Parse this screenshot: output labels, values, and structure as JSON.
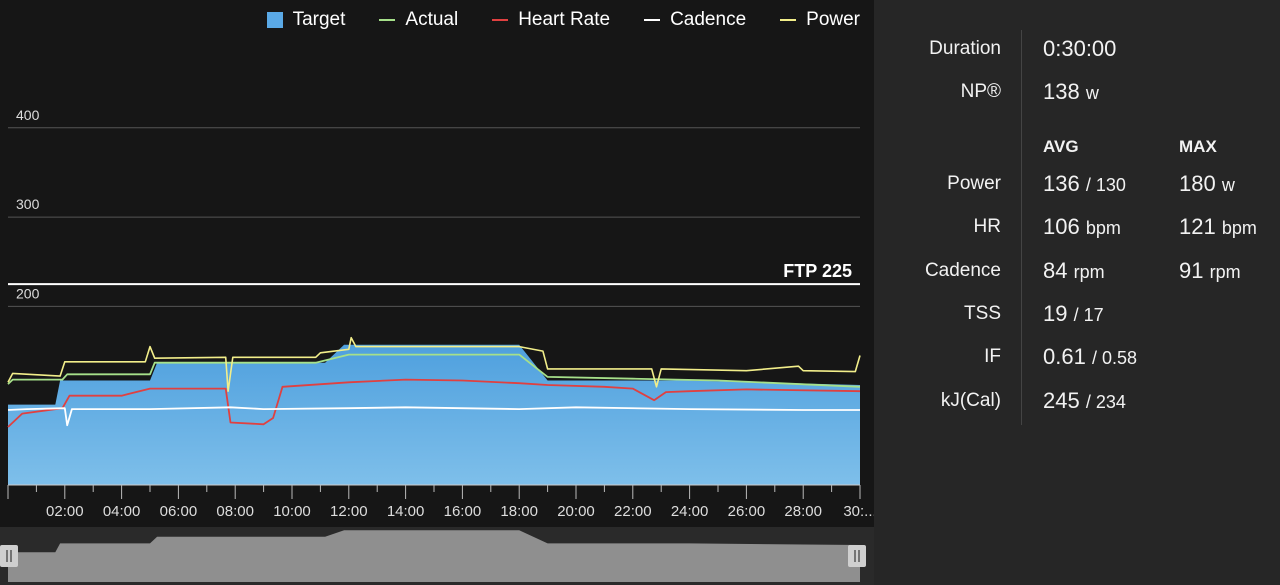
{
  "legend": {
    "items": [
      {
        "label": "Target",
        "color": "#5aa9e6",
        "kind": "box"
      },
      {
        "label": "Actual",
        "color": "#a6e08a",
        "kind": "line"
      },
      {
        "label": "Heart Rate",
        "color": "#e04040",
        "kind": "line"
      },
      {
        "label": "Cadence",
        "color": "#ffffff",
        "kind": "line"
      },
      {
        "label": "Power",
        "color": "#f2ee8a",
        "kind": "line"
      }
    ]
  },
  "chart_data": {
    "type": "line",
    "ylim": [
      0,
      430
    ],
    "xlim_seconds": [
      0,
      1800
    ],
    "y_ticks": [
      "200",
      "300",
      "400"
    ],
    "x_ticks": [
      "02:00",
      "04:00",
      "06:00",
      "08:00",
      "10:00",
      "12:00",
      "14:00",
      "16:00",
      "18:00",
      "20:00",
      "22:00",
      "24:00",
      "26:00",
      "28:00",
      "30:..."
    ],
    "ftp": {
      "label": "FTP 225",
      "value": 225
    },
    "series": [
      {
        "name": "Target",
        "color": "#5aa9e6",
        "points_mmss": [
          [
            "00:00",
            90
          ],
          [
            "01:40",
            90
          ],
          [
            "01:50",
            117
          ],
          [
            "05:00",
            117
          ],
          [
            "05:15",
            137
          ],
          [
            "11:10",
            137
          ],
          [
            "11:50",
            157
          ],
          [
            "18:00",
            157
          ],
          [
            "19:00",
            117
          ],
          [
            "24:00",
            117
          ],
          [
            "30:00",
            112
          ]
        ]
      },
      {
        "name": "Actual",
        "color": "#a6e08a",
        "points_mmss": [
          [
            "00:00",
            113
          ],
          [
            "00:10",
            118
          ],
          [
            "01:55",
            118
          ],
          [
            "02:05",
            124
          ],
          [
            "05:00",
            124
          ],
          [
            "05:10",
            137
          ],
          [
            "10:50",
            137
          ],
          [
            "12:00",
            146
          ],
          [
            "18:00",
            146
          ],
          [
            "19:00",
            121
          ],
          [
            "22:00",
            119
          ],
          [
            "25:00",
            117
          ],
          [
            "30:00",
            110
          ]
        ]
      },
      {
        "name": "Heart Rate",
        "color": "#e04040",
        "points_mmss": [
          [
            "00:00",
            65
          ],
          [
            "00:30",
            80
          ],
          [
            "01:55",
            86
          ],
          [
            "02:10",
            100
          ],
          [
            "04:00",
            100
          ],
          [
            "05:00",
            108
          ],
          [
            "07:40",
            108
          ],
          [
            "07:50",
            70
          ],
          [
            "09:00",
            68
          ],
          [
            "09:20",
            75
          ],
          [
            "09:40",
            110
          ],
          [
            "12:00",
            115
          ],
          [
            "14:00",
            118
          ],
          [
            "16:00",
            117
          ],
          [
            "18:00",
            114
          ],
          [
            "19:00",
            112
          ],
          [
            "21:00",
            110
          ],
          [
            "22:00",
            108
          ],
          [
            "22:45",
            95
          ],
          [
            "23:10",
            104
          ],
          [
            "24:00",
            105
          ],
          [
            "26:00",
            107
          ],
          [
            "30:00",
            105
          ]
        ]
      },
      {
        "name": "Cadence",
        "color": "#ffffff",
        "points_mmss": [
          [
            "00:00",
            84
          ],
          [
            "00:40",
            85
          ],
          [
            "02:00",
            86
          ],
          [
            "02:05",
            67
          ],
          [
            "02:15",
            85
          ],
          [
            "05:00",
            85
          ],
          [
            "07:50",
            87
          ],
          [
            "09:00",
            85
          ],
          [
            "12:00",
            86
          ],
          [
            "14:00",
            87
          ],
          [
            "18:00",
            85
          ],
          [
            "20:00",
            87
          ],
          [
            "24:00",
            85
          ],
          [
            "28:00",
            84
          ],
          [
            "30:00",
            84
          ]
        ]
      },
      {
        "name": "Power",
        "color": "#f2ee8a",
        "points_mmss": [
          [
            "00:00",
            115
          ],
          [
            "00:10",
            125
          ],
          [
            "01:50",
            122
          ],
          [
            "02:00",
            138
          ],
          [
            "04:50",
            138
          ],
          [
            "05:00",
            155
          ],
          [
            "05:10",
            142
          ],
          [
            "07:40",
            143
          ],
          [
            "07:45",
            105
          ],
          [
            "07:55",
            143
          ],
          [
            "10:50",
            143
          ],
          [
            "11:00",
            148
          ],
          [
            "12:00",
            152
          ],
          [
            "12:05",
            165
          ],
          [
            "12:15",
            155
          ],
          [
            "18:00",
            155
          ],
          [
            "18:50",
            150
          ],
          [
            "19:00",
            130
          ],
          [
            "22:40",
            130
          ],
          [
            "22:50",
            110
          ],
          [
            "23:00",
            130
          ],
          [
            "26:00",
            128
          ],
          [
            "27:50",
            133
          ],
          [
            "28:00",
            128
          ],
          [
            "29:50",
            127
          ],
          [
            "30:00",
            145
          ]
        ]
      }
    ]
  },
  "stats": {
    "rows_top": [
      {
        "label": "Duration",
        "value": "0:30:00",
        "unit": ""
      },
      {
        "label": "NP®",
        "value": "138",
        "unit": "w"
      }
    ],
    "col_avg": "AVG",
    "col_max": "MAX",
    "rows": [
      {
        "label": "Power",
        "avg": "136",
        "avg_suffix": "/ 130",
        "max": "180",
        "max_suffix": "w"
      },
      {
        "label": "HR",
        "avg": "106",
        "avg_suffix": "bpm",
        "max": "121",
        "max_suffix": "bpm"
      },
      {
        "label": "Cadence",
        "avg": "84",
        "avg_suffix": "rpm",
        "max": "91",
        "max_suffix": "rpm"
      },
      {
        "label": "TSS",
        "avg": "19",
        "avg_suffix": "/ 17",
        "max": "",
        "max_suffix": ""
      },
      {
        "label": "IF",
        "avg": "0.61",
        "avg_suffix": "/ 0.58",
        "max": "",
        "max_suffix": ""
      },
      {
        "label": "kJ(Cal)",
        "avg": "245",
        "avg_suffix": "/ 234",
        "max": "",
        "max_suffix": ""
      }
    ]
  }
}
